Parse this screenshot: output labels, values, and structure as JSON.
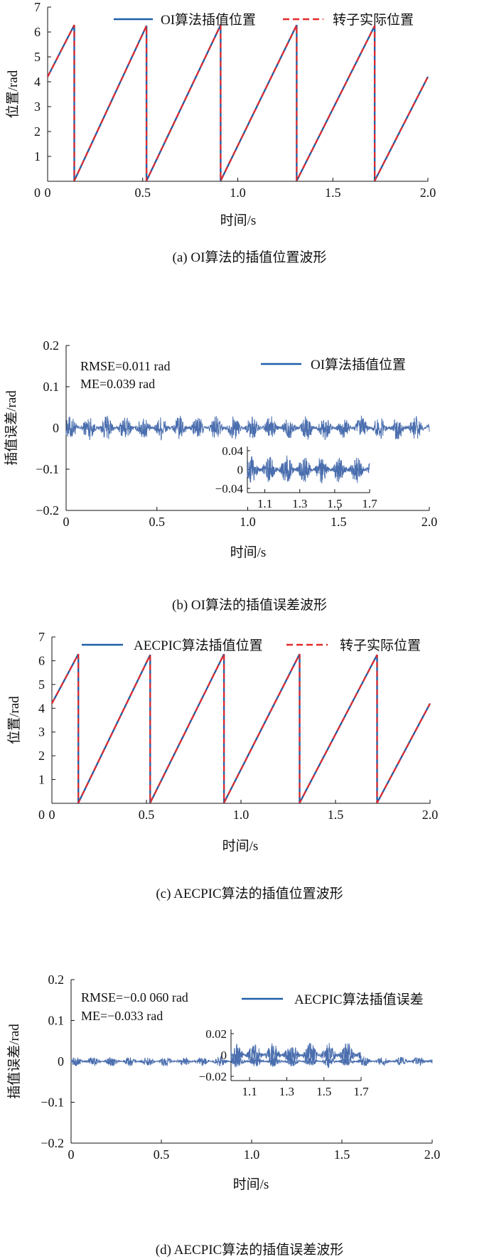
{
  "colors": {
    "interp": "#1f5fa8",
    "actual": "#e32b2b",
    "error": "#4a6eae",
    "axis": "#111111"
  },
  "chart_data": [
    {
      "id": "a",
      "type": "line",
      "caption": "(a) OI算法的插值位置波形",
      "xlabel": "时间/s",
      "ylabel": "位置/rad",
      "xlim": [
        0,
        2.0
      ],
      "ylim": [
        0,
        7
      ],
      "xticks": [
        "0",
        "0.5",
        "1.0",
        "1.5",
        "2.0"
      ],
      "yticks": [
        "1",
        "2",
        "3",
        "4",
        "5",
        "6",
        "7"
      ],
      "legend_position": "top",
      "series": [
        {
          "name": "OI算法插值位置",
          "style": "solid",
          "x": [
            0,
            0.14,
            0.14,
            0.52,
            0.52,
            0.91,
            0.91,
            1.31,
            1.31,
            1.72,
            1.72,
            2.0
          ],
          "y": [
            4.2,
            6.28,
            0.02,
            6.25,
            0.02,
            6.28,
            0.02,
            6.28,
            0.02,
            6.25,
            0.02,
            4.2
          ]
        },
        {
          "name": "转子实际位置",
          "style": "dashed",
          "x": [
            0,
            0.14,
            0.14,
            0.52,
            0.52,
            0.91,
            0.91,
            1.31,
            1.31,
            1.72,
            1.72,
            2.0
          ],
          "y": [
            4.2,
            6.28,
            0.02,
            6.25,
            0.02,
            6.28,
            0.02,
            6.28,
            0.02,
            6.25,
            0.02,
            4.2
          ]
        }
      ]
    },
    {
      "id": "b",
      "type": "line",
      "caption": "(b) OI算法的插值误差波形",
      "xlabel": "时间/s",
      "ylabel": "插值误差/rad",
      "xlim": [
        0,
        2.0
      ],
      "ylim": [
        -0.2,
        0.2
      ],
      "xticks": [
        "0",
        "0.5",
        "1.0",
        "1.5",
        "2.0"
      ],
      "yticks": [
        "−0.2",
        "−0.1",
        "0",
        "0.1",
        "0.2"
      ],
      "annotations": [
        "RMSE=0.011 rad",
        "ME=0.039 rad"
      ],
      "legend_position": "top-right",
      "series": [
        {
          "name": "OI算法插值位置",
          "style": "solid",
          "amplitude": 0.03,
          "oscillation_period": 0.1
        }
      ],
      "inset": {
        "xlim": [
          1.0,
          1.7
        ],
        "ylim": [
          -0.04,
          0.04
        ],
        "xticks": [
          "1.1",
          "1.3",
          "1.5",
          "1.7"
        ],
        "yticks": [
          "0.04",
          "0",
          "−0.04"
        ]
      }
    },
    {
      "id": "c",
      "type": "line",
      "caption": "(c) AECPIC算法的插值位置波形",
      "xlabel": "时间/s",
      "ylabel": "位置/rad",
      "xlim": [
        0,
        2.0
      ],
      "ylim": [
        0,
        7
      ],
      "xticks": [
        "0",
        "0.5",
        "1.0",
        "1.5",
        "2.0"
      ],
      "yticks": [
        "1",
        "2",
        "3",
        "4",
        "5",
        "6",
        "7"
      ],
      "legend_position": "top",
      "series": [
        {
          "name": "AECPIC算法插值位置",
          "style": "solid",
          "x": [
            0,
            0.14,
            0.14,
            0.52,
            0.52,
            0.91,
            0.91,
            1.31,
            1.31,
            1.72,
            1.72,
            2.0
          ],
          "y": [
            4.2,
            6.28,
            0.02,
            6.25,
            0.02,
            6.28,
            0.02,
            6.28,
            0.02,
            6.25,
            0.02,
            4.2
          ]
        },
        {
          "name": "转子实际位置",
          "style": "dashed",
          "x": [
            0,
            0.14,
            0.14,
            0.52,
            0.52,
            0.91,
            0.91,
            1.31,
            1.31,
            1.72,
            1.72,
            2.0
          ],
          "y": [
            4.2,
            6.28,
            0.02,
            6.25,
            0.02,
            6.28,
            0.02,
            6.28,
            0.02,
            6.25,
            0.02,
            4.2
          ]
        }
      ]
    },
    {
      "id": "d",
      "type": "line",
      "caption": "(d) AECPIC算法的插值误差波形",
      "xlabel": "时间/s",
      "ylabel": "插值误差/rad",
      "xlim": [
        0,
        2.0
      ],
      "ylim": [
        -0.2,
        0.2
      ],
      "xticks": [
        "0",
        "0.5",
        "1.0",
        "1.5",
        "2.0"
      ],
      "yticks": [
        "−0.2",
        "−0.1",
        "0",
        "0.1",
        "0.2"
      ],
      "annotations": [
        "RMSE=−0.0 060 rad",
        "ME=−0.033 rad"
      ],
      "legend_position": "top-right",
      "series": [
        {
          "name": "AECPIC算法插值误差",
          "style": "solid",
          "amplitude": 0.012,
          "oscillation_period": 0.1
        }
      ],
      "inset": {
        "xlim": [
          1.0,
          1.7
        ],
        "ylim": [
          -0.02,
          0.02
        ],
        "xticks": [
          "1.1",
          "1.3",
          "1.5",
          "1.7"
        ],
        "yticks": [
          "0.02",
          "0",
          "−0.02"
        ]
      }
    }
  ]
}
